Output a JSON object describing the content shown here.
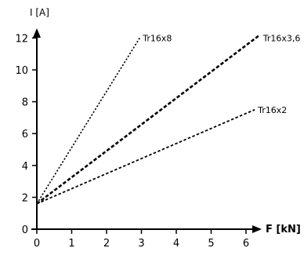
{
  "chart_data": {
    "type": "line",
    "ylabel": "I [A]",
    "xlabel": "F [kN]",
    "xlim": [
      0,
      6.5
    ],
    "ylim": [
      0,
      13
    ],
    "x_ticks": [
      0,
      1,
      2,
      3,
      4,
      5,
      6
    ],
    "y_ticks": [
      0,
      2,
      4,
      6,
      8,
      10,
      12
    ],
    "grid": false,
    "series": [
      {
        "name": "Tr16x8",
        "x": [
          0,
          2.95
        ],
        "y": [
          1.6,
          12.0
        ],
        "style": "dotted"
      },
      {
        "name": "Tr16x3,6",
        "x": [
          0,
          6.4
        ],
        "y": [
          1.6,
          12.2
        ],
        "style": "dashed-bold"
      },
      {
        "name": "Tr16x2",
        "x": [
          0,
          6.25
        ],
        "y": [
          1.6,
          7.5
        ],
        "style": "dashed"
      }
    ]
  }
}
